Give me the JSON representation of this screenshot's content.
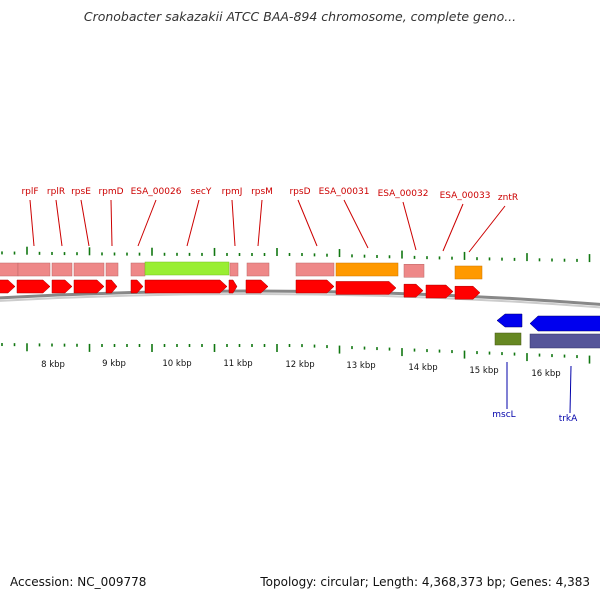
{
  "title": "Cronobacter sakazakii ATCC BAA-894 chromosome, complete geno...",
  "footer": {
    "accession": "Accession: NC_009778",
    "topology": "Topology: circular; Length: 4,368,373 bp; Genes: 4,383"
  },
  "colors": {
    "top_label": "#cc0000",
    "bottom_label": "#0000aa",
    "cds_arrow": "#ff0000",
    "pink_box": "#ee8888",
    "orange_box": "#ff9900",
    "green_box": "#99ee33",
    "blue_arrow": "#0000ee",
    "olive_box": "#668822",
    "purple_box": "#555599",
    "tick": "#117711",
    "backbone": "#888888"
  },
  "ticks": [
    {
      "label": "8 kbp"
    },
    {
      "label": "9 kbp"
    },
    {
      "label": "10 kbp"
    },
    {
      "label": "11 kbp"
    },
    {
      "label": "12 kbp"
    },
    {
      "label": "13 kbp"
    },
    {
      "label": "14 kbp"
    },
    {
      "label": "15 kbp"
    },
    {
      "label": "16 kbp"
    }
  ],
  "top_labels": [
    {
      "text": "rplF"
    },
    {
      "text": "rplR"
    },
    {
      "text": "rpsE"
    },
    {
      "text": "rpmD"
    },
    {
      "text": "ESA_00026"
    },
    {
      "text": "secY"
    },
    {
      "text": "rpmJ"
    },
    {
      "text": "rpsM"
    },
    {
      "text": "rpsD"
    },
    {
      "text": "ESA_00031"
    },
    {
      "text": "ESA_00032"
    },
    {
      "text": "ESA_00033"
    },
    {
      "text": "zntR"
    }
  ],
  "bottom_labels": [
    {
      "text": "mscL"
    },
    {
      "text": "trkA"
    }
  ]
}
